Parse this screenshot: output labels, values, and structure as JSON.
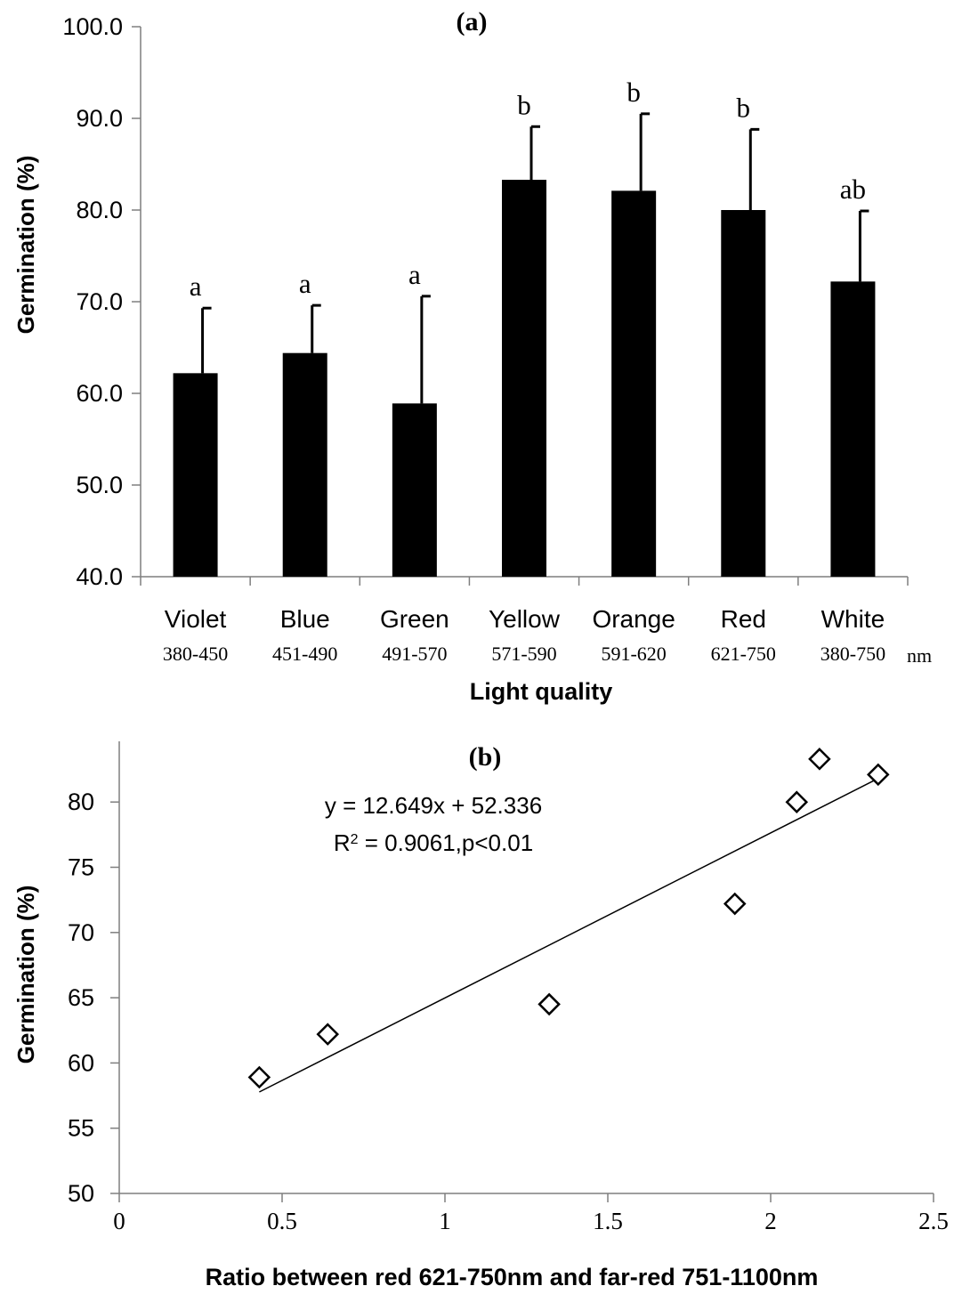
{
  "chart_data": [
    {
      "panel": "(a)",
      "type": "bar",
      "title": "(a)",
      "ylabel": "Germination (%)",
      "xlabel": "Light quality",
      "ylim": [
        40.0,
        100.0
      ],
      "yticks": [
        "40.0",
        "50.0",
        "60.0",
        "70.0",
        "80.0",
        "90.0",
        "100.0"
      ],
      "unit_label": "nm",
      "categories": [
        "Violet",
        "Blue",
        "Green",
        "Yellow",
        "Orange",
        "Red",
        "White"
      ],
      "ranges": [
        "380-450",
        "451-490",
        "491-570",
        "571-590",
        "591-620",
        "621-750",
        "380-750"
      ],
      "values": [
        62.2,
        64.4,
        58.9,
        83.3,
        82.1,
        80.0,
        72.2
      ],
      "error_upper": [
        69.3,
        69.6,
        70.6,
        89.1,
        90.5,
        88.8,
        79.9
      ],
      "letters": [
        "a",
        "a",
        "a",
        "b",
        "b",
        "b",
        "ab"
      ],
      "bar_color": "#000000",
      "grid": false
    },
    {
      "panel": "(b)",
      "type": "scatter",
      "title": "(b)",
      "ylabel": "Germination (%)",
      "xlabel": "Ratio between red 621-750nm and far-red 751-1100nm",
      "xlim": [
        0,
        2.5
      ],
      "ylim": [
        50,
        85
      ],
      "xticks": [
        "0",
        "0.5",
        "1",
        "1.5",
        "2",
        "2.5"
      ],
      "yticks": [
        "50",
        "55",
        "60",
        "65",
        "70",
        "75",
        "80"
      ],
      "points": [
        {
          "x": 0.43,
          "y": 58.9
        },
        {
          "x": 0.64,
          "y": 62.2
        },
        {
          "x": 1.32,
          "y": 64.5
        },
        {
          "x": 1.89,
          "y": 72.2
        },
        {
          "x": 2.08,
          "y": 80.0
        },
        {
          "x": 2.15,
          "y": 83.3
        },
        {
          "x": 2.33,
          "y": 82.1
        }
      ],
      "trendline": {
        "slope": 12.649,
        "intercept": 52.336,
        "x_range": [
          0.43,
          2.33
        ]
      },
      "equation": "y = 12.649x + 52.336",
      "r2_text_prefix": "R",
      "r2_text_sup": "2",
      "r2_text_suffix": " = 0.9061,p<0.01",
      "marker": "diamond-open",
      "grid": false
    }
  ]
}
